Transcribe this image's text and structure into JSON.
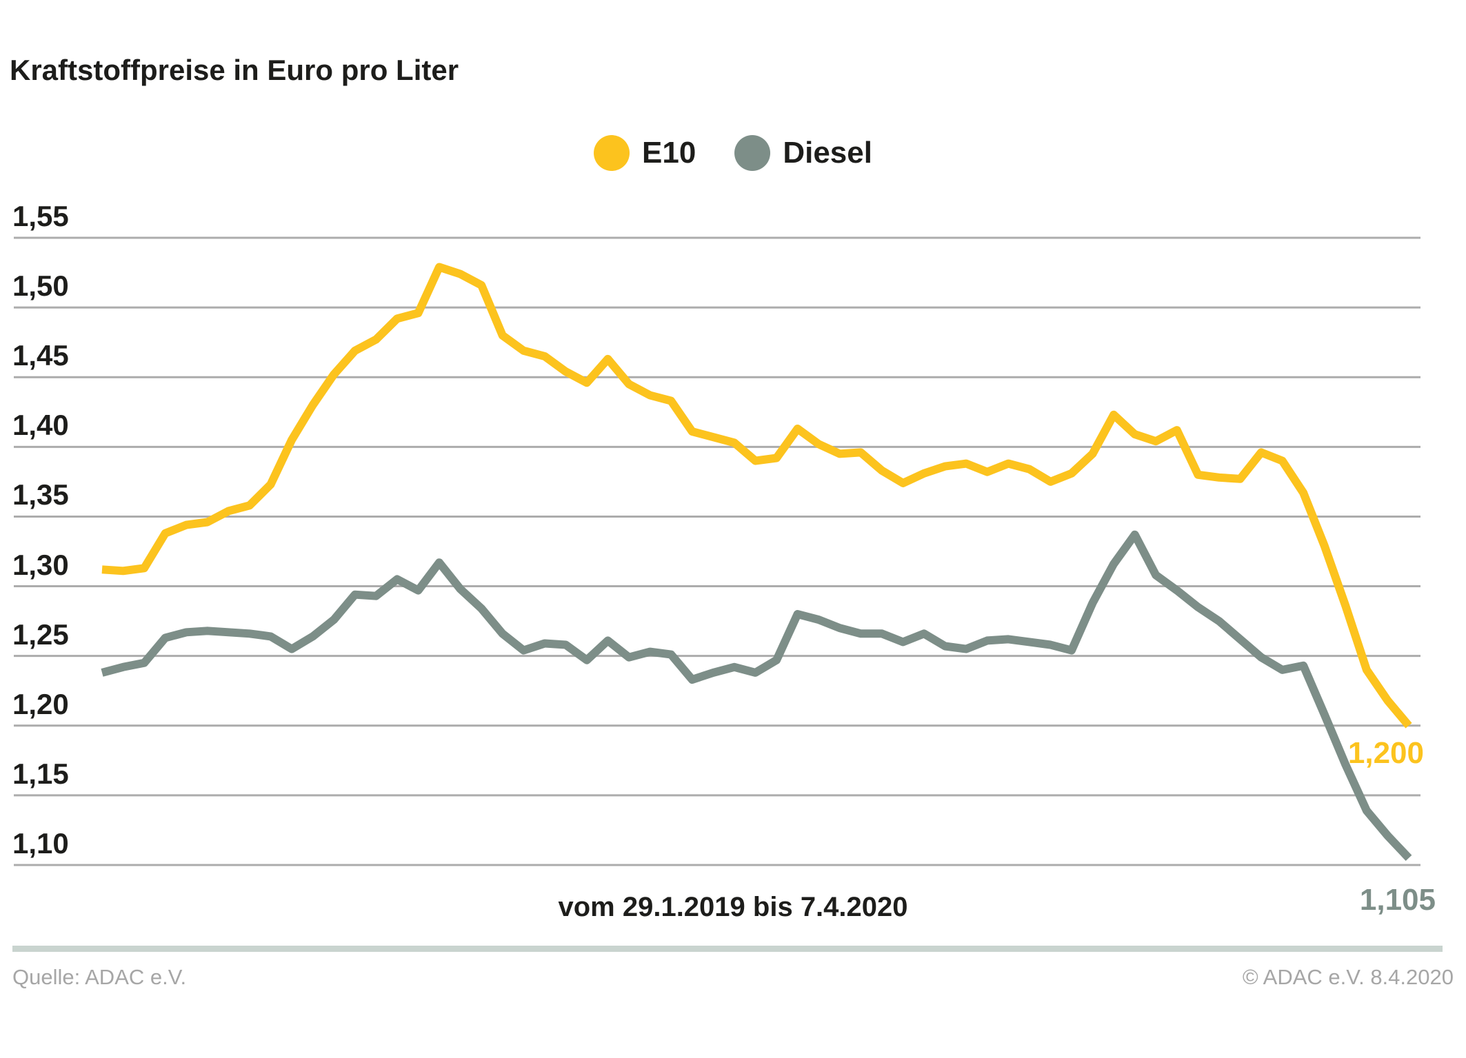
{
  "title": "Kraftstoffpreise in Euro pro Liter",
  "legend": {
    "e10": {
      "label": "E10",
      "color": "#fcc31e"
    },
    "diesel": {
      "label": "Diesel",
      "color": "#7d8e88"
    }
  },
  "x_caption": "vom 29.1.2019 bis 7.4.2020",
  "end_labels": {
    "e10": "1,200",
    "diesel": "1,105"
  },
  "footer": {
    "source": "Quelle: ADAC e.V.",
    "copyright": "© ADAC e.V. 8.4.2020"
  },
  "colors": {
    "e10_line": "#fcc31e",
    "diesel_line": "#7d8e88",
    "gridline": "#acacac",
    "text_dark": "#1d1d1b",
    "text_gray": "#a6a6a6",
    "divider": "#c9d4cf"
  },
  "chart_data": {
    "type": "line",
    "title": "Kraftstoffpreise in Euro pro Liter",
    "xlabel": "vom 29.1.2019 bis 7.4.2020",
    "ylabel": "Euro pro Liter",
    "x_start": "29.1.2019",
    "x_end": "7.4.2020",
    "x_interval": "weekly",
    "ylim": [
      1.1,
      1.55
    ],
    "grid": "horizontal",
    "legend_position": "top-center",
    "yticks": [
      {
        "label": "1,55",
        "value": 1.55
      },
      {
        "label": "1,50",
        "value": 1.5
      },
      {
        "label": "1,45",
        "value": 1.45
      },
      {
        "label": "1,40",
        "value": 1.4
      },
      {
        "label": "1,35",
        "value": 1.35
      },
      {
        "label": "1,30",
        "value": 1.3
      },
      {
        "label": "1,25",
        "value": 1.25
      },
      {
        "label": "1,20",
        "value": 1.2
      },
      {
        "label": "1,15",
        "value": 1.15
      },
      {
        "label": "1,10",
        "value": 1.1
      }
    ],
    "series": [
      {
        "name": "E10",
        "color": "#fcc31e",
        "end_label": "1,200",
        "values": [
          1.312,
          1.311,
          1.313,
          1.338,
          1.344,
          1.346,
          1.354,
          1.358,
          1.373,
          1.405,
          1.43,
          1.452,
          1.469,
          1.477,
          1.492,
          1.496,
          1.529,
          1.524,
          1.516,
          1.48,
          1.469,
          1.465,
          1.454,
          1.446,
          1.463,
          1.445,
          1.437,
          1.433,
          1.411,
          1.407,
          1.403,
          1.39,
          1.392,
          1.413,
          1.402,
          1.395,
          1.396,
          1.383,
          1.374,
          1.381,
          1.386,
          1.388,
          1.382,
          1.388,
          1.384,
          1.375,
          1.381,
          1.395,
          1.423,
          1.409,
          1.404,
          1.412,
          1.38,
          1.378,
          1.377,
          1.396,
          1.39,
          1.367,
          1.329,
          1.286,
          1.24,
          1.218,
          1.2
        ]
      },
      {
        "name": "Diesel",
        "color": "#7d8e88",
        "end_label": "1,105",
        "values": [
          1.238,
          1.242,
          1.245,
          1.263,
          1.267,
          1.268,
          1.267,
          1.266,
          1.264,
          1.255,
          1.264,
          1.276,
          1.294,
          1.293,
          1.305,
          1.297,
          1.317,
          1.298,
          1.284,
          1.266,
          1.254,
          1.259,
          1.258,
          1.247,
          1.261,
          1.249,
          1.253,
          1.251,
          1.233,
          1.238,
          1.242,
          1.238,
          1.247,
          1.28,
          1.276,
          1.27,
          1.266,
          1.266,
          1.26,
          1.266,
          1.257,
          1.255,
          1.261,
          1.262,
          1.26,
          1.258,
          1.254,
          1.288,
          1.316,
          1.337,
          1.308,
          1.297,
          1.285,
          1.275,
          1.262,
          1.249,
          1.24,
          1.243,
          1.208,
          1.172,
          1.139,
          1.121,
          1.105
        ]
      }
    ]
  }
}
